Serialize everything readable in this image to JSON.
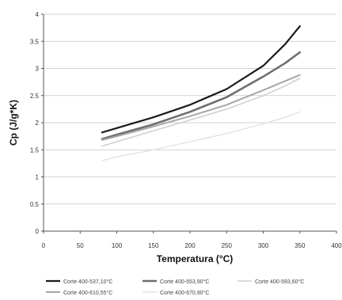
{
  "chart_data": {
    "type": "line",
    "title": "",
    "xlabel": "Temperatura (°C)",
    "ylabel": "Cp (J/g*K)",
    "xlim": [
      0,
      400
    ],
    "ylim": [
      0,
      4
    ],
    "xticks": [
      0,
      50,
      100,
      150,
      200,
      250,
      300,
      350,
      400
    ],
    "yticks": [
      0,
      0.5,
      1,
      1.5,
      2,
      2.5,
      3,
      3.5,
      4
    ],
    "grid": "horizontal",
    "legend_position": "bottom",
    "series": [
      {
        "name": "Corte 400-537,10°C",
        "color": "#1a1a1a",
        "x": [
          80,
          100,
          150,
          200,
          250,
          300,
          330,
          350
        ],
        "y": [
          1.82,
          1.9,
          2.1,
          2.33,
          2.62,
          3.05,
          3.45,
          3.78
        ]
      },
      {
        "name": "Corte 400-553,90°C",
        "color": "#6e6e6e",
        "x": [
          80,
          100,
          150,
          200,
          250,
          300,
          330,
          350
        ],
        "y": [
          1.7,
          1.78,
          1.97,
          2.2,
          2.47,
          2.85,
          3.1,
          3.3
        ]
      },
      {
        "name": "Corte 400-593,60°C",
        "color": "#cfcfcf",
        "x": [
          80,
          100,
          150,
          200,
          250,
          300,
          330,
          350
        ],
        "y": [
          1.57,
          1.65,
          1.85,
          2.05,
          2.25,
          2.5,
          2.68,
          2.82
        ]
      },
      {
        "name": "Corte 400-610,55°C",
        "color": "#a6a6a6",
        "x": [
          80,
          100,
          150,
          200,
          250,
          300,
          330,
          350
        ],
        "y": [
          1.68,
          1.75,
          1.93,
          2.12,
          2.33,
          2.6,
          2.77,
          2.88
        ]
      },
      {
        "name": "Corte 400-670,90°C",
        "color": "#e2e2e2",
        "x": [
          80,
          100,
          150,
          200,
          250,
          300,
          330,
          350
        ],
        "y": [
          1.3,
          1.37,
          1.5,
          1.65,
          1.8,
          1.98,
          2.1,
          2.2
        ]
      }
    ]
  }
}
